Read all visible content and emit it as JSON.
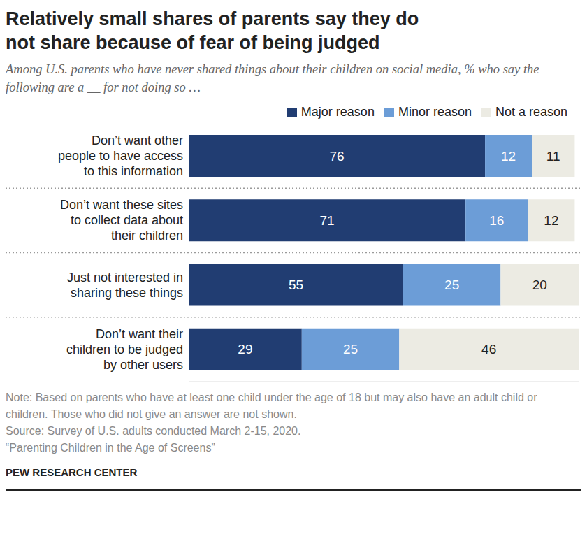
{
  "chart_data": {
    "type": "bar",
    "orientation": "horizontal",
    "stacked": true,
    "data_labels": true,
    "tick_labels": false,
    "grid": false,
    "legend": "top",
    "title": "Relatively small shares of parents say they do not share because of fear of being judged",
    "subtitle": "Among U.S. parents who have never shared things about their children on social media, % who say the following are a __ for not doing so …",
    "categories": [
      "Don’t want other people to have access to this information",
      "Don’t want these sites to collect data about their children",
      "Just not interested in sharing these things",
      "Don’t want their children to be judged by other users"
    ],
    "series": [
      {
        "name": "Major reason",
        "color": "#213d72",
        "values": [
          76,
          71,
          55,
          29
        ]
      },
      {
        "name": "Minor reason",
        "color": "#6c9dd7",
        "values": [
          12,
          16,
          25,
          25
        ]
      },
      {
        "name": "Not a reason",
        "color": "#ecebe3",
        "values": [
          11,
          12,
          20,
          46
        ]
      }
    ],
    "xlim": [
      0,
      100
    ],
    "note": "Note: Based on parents who have at least one child under the age of 18 but may also have an adult child or children. Those who did not give an answer are not shown.",
    "source": "Source: Survey of U.S. adults conducted March 2-15, 2020.",
    "report": "“Parenting Children in the Age of Screens”",
    "credit": "PEW RESEARCH CENTER"
  }
}
